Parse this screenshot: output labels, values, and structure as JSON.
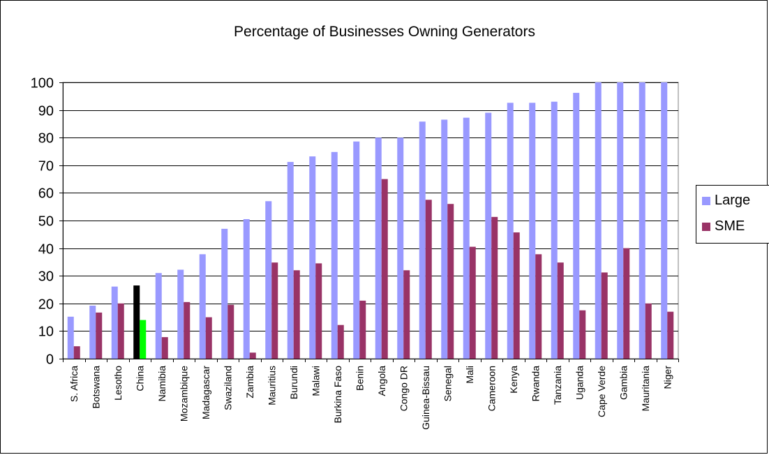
{
  "chart_data": {
    "type": "bar",
    "title": "Percentage of Businesses Owning Generators",
    "xlabel": "",
    "ylabel": "",
    "ylim": [
      0,
      100
    ],
    "yticks": [
      0,
      10,
      20,
      30,
      40,
      50,
      60,
      70,
      80,
      90,
      100
    ],
    "grid": true,
    "legend_position": "right",
    "categories": [
      "S. Africa",
      "Botswana",
      "Lesotho",
      "China",
      "Namibia",
      "Mozambique",
      "Madagascar",
      "Swaziland",
      "Zambia",
      "Mauritius",
      "Burundi",
      "Malawi",
      "Burkina Faso",
      "Benin",
      "Angola",
      "Congo DR",
      "Guinea-Bissau",
      "Senegal",
      "Mali",
      "Cameroon",
      "Kenya",
      "Rwanda",
      "Tanzania",
      "Uganda",
      "Cape Verde",
      "Gambia",
      "Mauritania",
      "Niger"
    ],
    "series": [
      {
        "name": "Large",
        "color": "#9999ff",
        "values": [
          15.2,
          19.2,
          26.1,
          26.5,
          31,
          32.2,
          37.8,
          47,
          50.5,
          57,
          71.2,
          73.2,
          74.8,
          78.6,
          80,
          80,
          85.8,
          86.5,
          87.2,
          89,
          92.6,
          92.6,
          93,
          96.2,
          100,
          100,
          100,
          100
        ]
      },
      {
        "name": "SME",
        "color": "#993366",
        "values": [
          4.5,
          16.7,
          20,
          14,
          7.8,
          20.5,
          15,
          19.5,
          2.2,
          34.8,
          32,
          34.5,
          12.2,
          21,
          65,
          32,
          57.5,
          56,
          40.5,
          51.3,
          45.7,
          37.8,
          34.8,
          17.5,
          31.2,
          40,
          20,
          17
        ]
      }
    ],
    "highlight": {
      "category": "China",
      "colors": {
        "Large": "#000000",
        "SME": "#00ff00"
      }
    }
  }
}
